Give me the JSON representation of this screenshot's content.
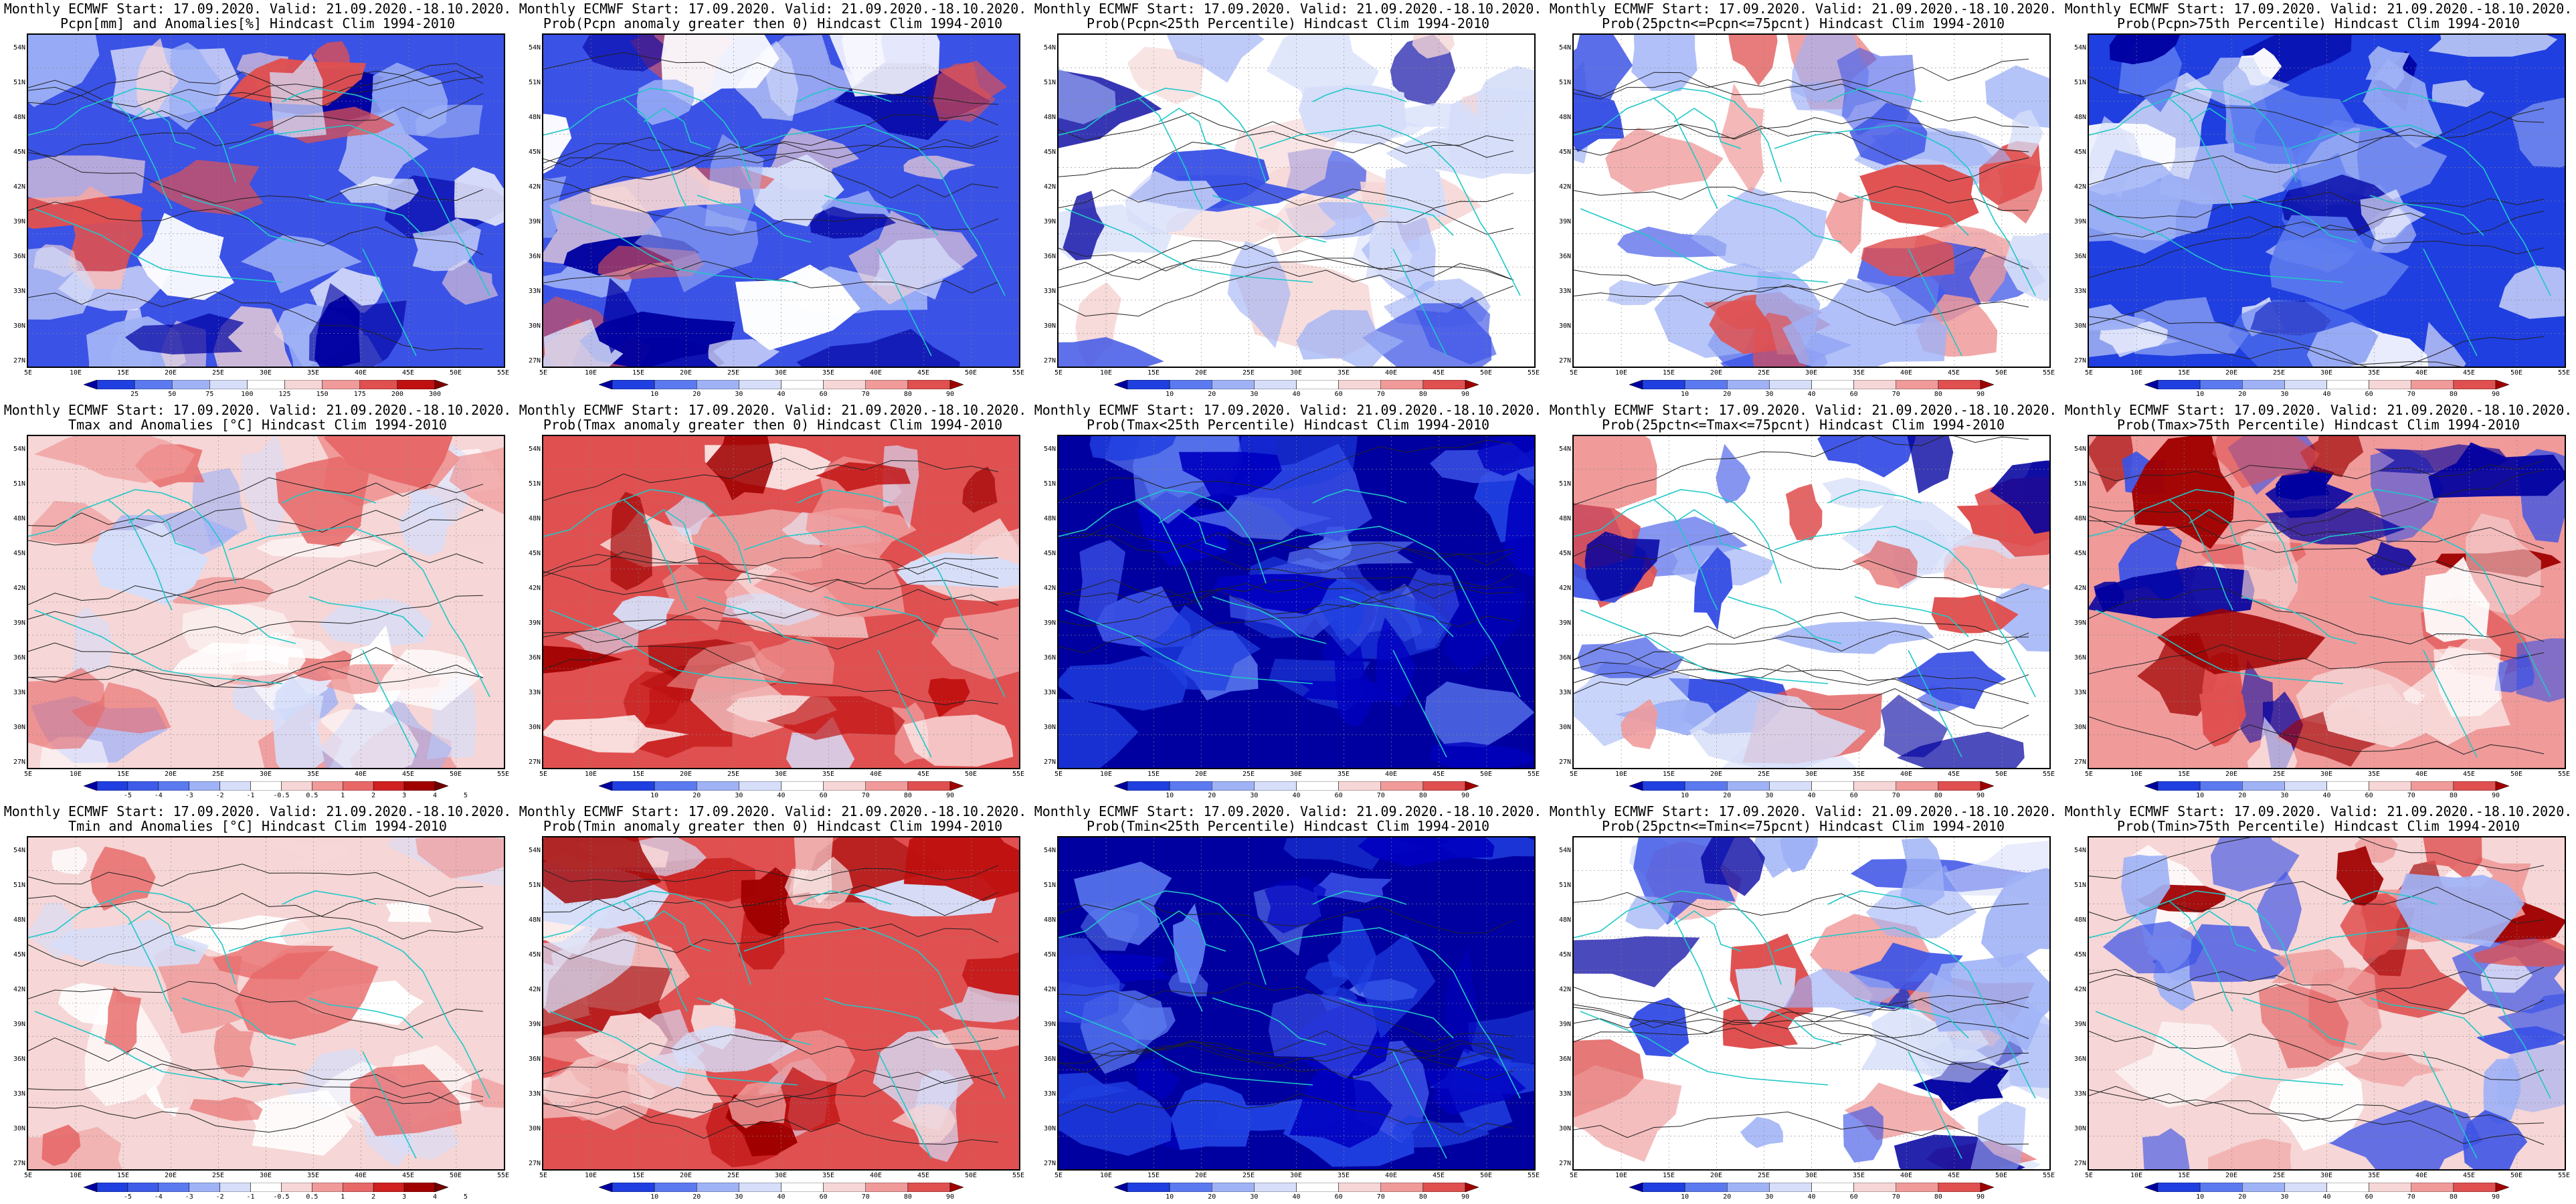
{
  "lat_ticks": [
    "54N",
    "51N",
    "48N",
    "45N",
    "42N",
    "39N",
    "36N",
    "33N",
    "30N",
    "27N"
  ],
  "lon_ticks": [
    "5E",
    "10E",
    "15E",
    "20E",
    "25E",
    "30E",
    "35E",
    "40E",
    "45E",
    "50E",
    "55E"
  ],
  "colors": {
    "coast": "#20c8c8",
    "contour": "#222222",
    "frame": "#000000"
  },
  "colorbars": {
    "pcpn_anom": {
      "labels": [
        "25",
        "50",
        "75",
        "100",
        "125",
        "150",
        "175",
        "200",
        "300"
      ],
      "colors": [
        "#0000a0",
        "#1f3fe0",
        "#5b7af0",
        "#9fb2f6",
        "#d6def9",
        "#ffffff",
        "#f6d6d6",
        "#f09a9a",
        "#e05050",
        "#c01010",
        "#800000"
      ]
    },
    "prob": {
      "labels": [
        "10",
        "20",
        "30",
        "40",
        "60",
        "70",
        "80",
        "90"
      ],
      "colors": [
        "#0000a0",
        "#1f3fe0",
        "#5b7af0",
        "#9fb2f6",
        "#d6def9",
        "#ffffff",
        "#f6d6d6",
        "#f09a9a",
        "#e05050",
        "#a00000"
      ]
    },
    "temp_anom": {
      "labels": [
        "-5",
        "-4",
        "-3",
        "-2",
        "-1",
        "-0.5",
        "0.5",
        "1",
        "2",
        "3",
        "4",
        "5"
      ],
      "colors": [
        "#0000a0",
        "#1f3fe0",
        "#3e5ce8",
        "#5b7af0",
        "#9fb2f6",
        "#d6def9",
        "#ffffff",
        "#f6d6d6",
        "#f09a9a",
        "#e86868",
        "#d02020",
        "#a00000",
        "#700000"
      ]
    }
  },
  "panels": [
    {
      "line1": "Monthly ECMWF Start: 17.09.2020. Valid: 21.09.2020.-18.10.2020.",
      "line2": "Pcpn[mm] and Anomalies[%] Hindcast Clim 1994-2010",
      "colorbar": "pcpn_anom",
      "palette": "pcpn"
    },
    {
      "line1": "Monthly ECMWF Start: 17.09.2020. Valid: 21.09.2020.-18.10.2020.",
      "line2": "Prob(Pcpn anomaly greater then 0) Hindcast Clim 1994-2010",
      "colorbar": "prob",
      "palette": "pcpn"
    },
    {
      "line1": "Monthly ECMWF Start: 17.09.2020. Valid: 21.09.2020.-18.10.2020.",
      "line2": "Prob(Pcpn<25th Percentile) Hindcast Clim 1994-2010",
      "colorbar": "prob",
      "palette": "pcpn_low"
    },
    {
      "line1": "Monthly ECMWF Start: 17.09.2020. Valid: 21.09.2020.-18.10.2020.",
      "line2": "Prob(25pctn<=Pcpn<=75pcnt) Hindcast Clim 1994-2010",
      "colorbar": "prob",
      "palette": "pcpn_mid"
    },
    {
      "line1": "Monthly ECMWF Start: 17.09.2020. Valid: 21.09.2020.-18.10.2020.",
      "line2": "Prob(Pcpn>75th Percentile) Hindcast Clim 1994-2010",
      "colorbar": "prob",
      "palette": "pcpn_high"
    },
    {
      "line1": "Monthly ECMWF Start: 17.09.2020. Valid: 21.09.2020.-18.10.2020.",
      "line2": "Tmax and Anomalies [°C] Hindcast Clim 1994-2010",
      "colorbar": "temp_anom",
      "palette": "t_anom"
    },
    {
      "line1": "Monthly ECMWF Start: 17.09.2020. Valid: 21.09.2020.-18.10.2020.",
      "line2": "Prob(Tmax anomaly greater then 0) Hindcast Clim 1994-2010",
      "colorbar": "prob",
      "palette": "t_warm"
    },
    {
      "line1": "Monthly ECMWF Start: 17.09.2020. Valid: 21.09.2020.-18.10.2020.",
      "line2": "Prob(Tmax<25th Percentile) Hindcast Clim 1994-2010",
      "colorbar": "prob",
      "palette": "t_cold"
    },
    {
      "line1": "Monthly ECMWF Start: 17.09.2020. Valid: 21.09.2020.-18.10.2020.",
      "line2": "Prob(25pctn<=Tmax<=75pcnt) Hindcast Clim 1994-2010",
      "colorbar": "prob",
      "palette": "t_mid"
    },
    {
      "line1": "Monthly ECMWF Start: 17.09.2020. Valid: 21.09.2020.-18.10.2020.",
      "line2": "Prob(Tmax>75th Percentile) Hindcast Clim 1994-2010",
      "colorbar": "prob",
      "palette": "t_high"
    },
    {
      "line1": "Monthly ECMWF Start: 17.09.2020. Valid: 21.09.2020.-18.10.2020.",
      "line2": "Tmin and Anomalies [°C] Hindcast Clim 1994-2010",
      "colorbar": "temp_anom",
      "palette": "t_anom_min"
    },
    {
      "line1": "Monthly ECMWF Start: 17.09.2020. Valid: 21.09.2020.-18.10.2020.",
      "line2": "Prob(Tmin anomaly greater then 0) Hindcast Clim 1994-2010",
      "colorbar": "prob",
      "palette": "t_warm"
    },
    {
      "line1": "Monthly ECMWF Start: 17.09.2020. Valid: 21.09.2020.-18.10.2020.",
      "line2": "Prob(Tmin<25th Percentile) Hindcast Clim 1994-2010",
      "colorbar": "prob",
      "palette": "t_cold"
    },
    {
      "line1": "Monthly ECMWF Start: 17.09.2020. Valid: 21.09.2020.-18.10.2020.",
      "line2": "Prob(25pctn<=Tmin<=75pcnt) Hindcast Clim 1994-2010",
      "colorbar": "prob",
      "palette": "t_mid"
    },
    {
      "line1": "Monthly ECMWF Start: 17.09.2020. Valid: 21.09.2020.-18.10.2020.",
      "line2": "Prob(Tmin>75th Percentile) Hindcast Clim 1994-2010",
      "colorbar": "prob",
      "palette": "t_high_min"
    }
  ]
}
